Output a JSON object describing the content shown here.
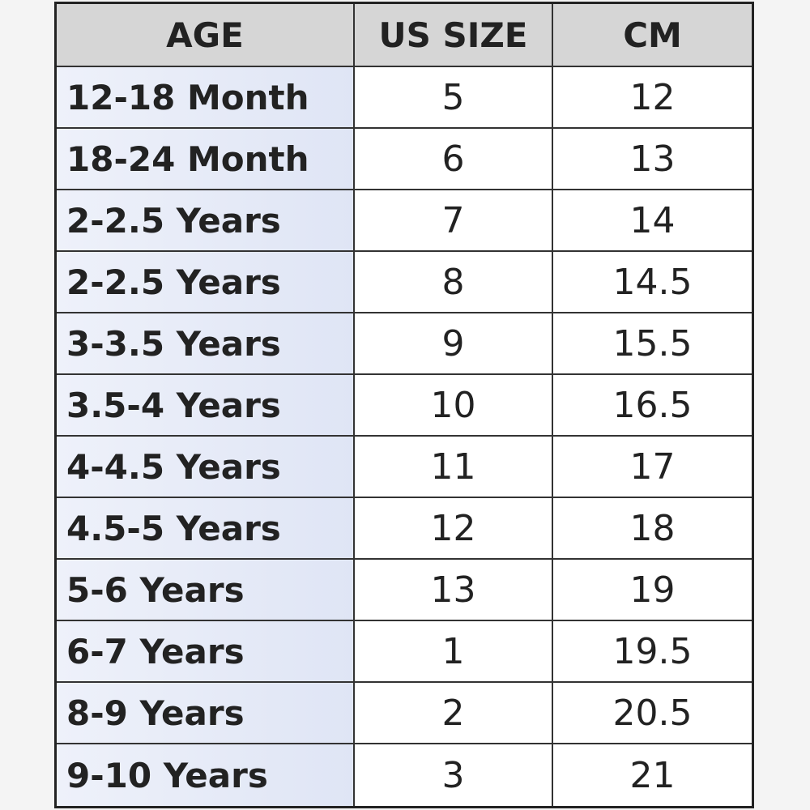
{
  "table": {
    "header": [
      "AGE",
      "US SIZE",
      "CM"
    ],
    "rows": [
      [
        "12-18 Month",
        5,
        12
      ],
      [
        "18-24 Month",
        6,
        13
      ],
      [
        "2-2.5 Years",
        7,
        14
      ],
      [
        "2-2.5 Years",
        8,
        14.5
      ],
      [
        "3-3.5 Years",
        9,
        15.5
      ],
      [
        "3.5-4 Years",
        10,
        16.5
      ],
      [
        "4-4.5 Years",
        11,
        17
      ],
      [
        "4.5-5 Years",
        12,
        18
      ],
      [
        "5-6 Years",
        13,
        19
      ],
      [
        "6-7 Years",
        1,
        19.5
      ],
      [
        "8-9 Years",
        2,
        20.5
      ],
      [
        "9-10 Years",
        3,
        21
      ]
    ]
  }
}
